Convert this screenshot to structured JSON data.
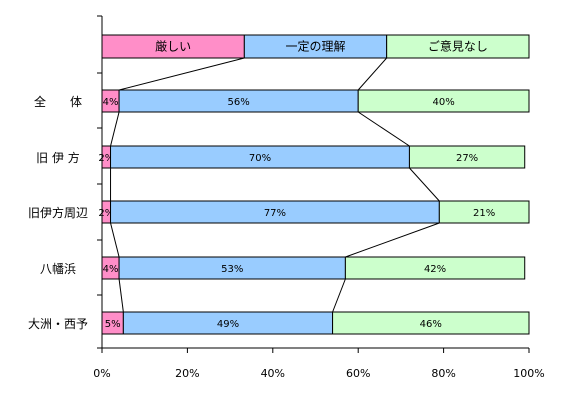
{
  "chart_data": {
    "type": "bar",
    "orientation": "horizontal",
    "stacked": true,
    "percent": true,
    "categories": [
      "全　　体",
      "旧 伊 方",
      "旧伊方周辺",
      "八幡浜",
      "大洲・西予"
    ],
    "series": [
      {
        "name": "厳しい",
        "color": "#ff8ec8",
        "values": [
          4,
          2,
          2,
          4,
          5
        ]
      },
      {
        "name": "一定の理解",
        "color": "#99ccff",
        "values": [
          56,
          70,
          77,
          53,
          49
        ]
      },
      {
        "name": "ご意見なし",
        "color": "#ccffcc",
        "values": [
          40,
          27,
          21,
          42,
          46
        ]
      }
    ],
    "value_labels": [
      [
        "4%",
        "56%",
        "40%"
      ],
      [
        "2%",
        "70%",
        "27%"
      ],
      [
        "2%",
        "77%",
        "21%"
      ],
      [
        "4%",
        "53%",
        "42%"
      ],
      [
        "5%",
        "49%",
        "46%"
      ]
    ],
    "x_ticks": [
      "0%",
      "20%",
      "40%",
      "60%",
      "80%",
      "100%"
    ],
    "xlim": [
      0,
      100
    ],
    "legend_placement": "top",
    "series_lines": true,
    "grid": false
  }
}
